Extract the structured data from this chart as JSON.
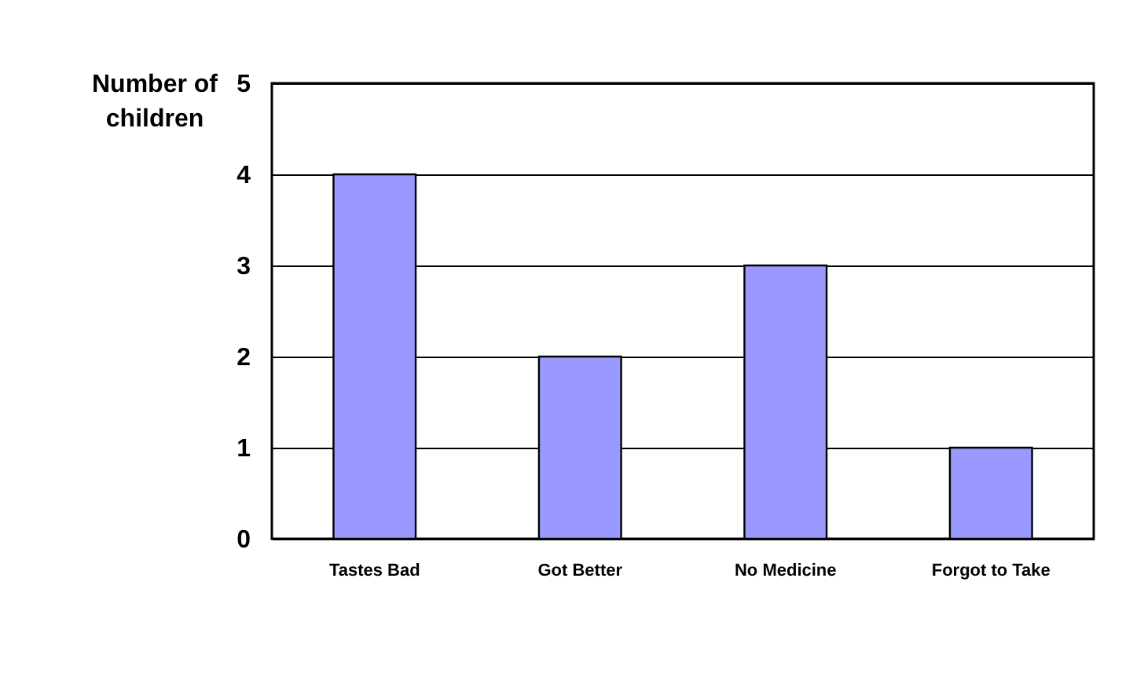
{
  "chart_data": {
    "type": "bar",
    "ylabel": "Number of children",
    "categories": [
      "Tastes Bad",
      "Got Better",
      "No Medicine",
      "Forgot to Take"
    ],
    "values": [
      4,
      2,
      3,
      1
    ],
    "color": "#9999ff",
    "ylim": [
      0,
      5
    ],
    "yticks": [
      0,
      1,
      2,
      3,
      4,
      5
    ],
    "grid": "y"
  }
}
